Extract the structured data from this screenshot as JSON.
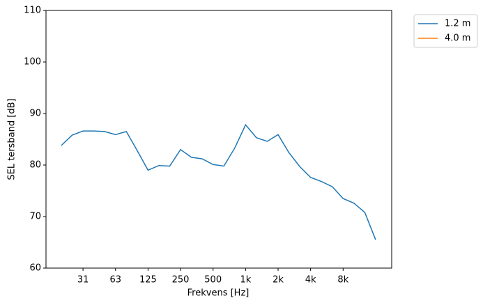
{
  "chart_data": {
    "type": "line",
    "xlabel": "Frekvens [Hz]",
    "ylabel": "SEL tersband [dB]",
    "categories": [
      null,
      null,
      "31",
      null,
      null,
      "63",
      null,
      null,
      "125",
      null,
      null,
      "250",
      null,
      null,
      "500",
      null,
      null,
      "1k",
      null,
      null,
      "2k",
      null,
      null,
      "4k",
      null,
      null,
      "8k",
      null,
      null,
      null
    ],
    "series": [
      {
        "name": "1.2 m",
        "color": "#1f77b4",
        "values": [
          83.8,
          85.8,
          86.6,
          86.6,
          86.5,
          85.9,
          86.5,
          82.8,
          79.0,
          79.9,
          79.8,
          83.0,
          81.5,
          81.2,
          80.1,
          79.8,
          83.3,
          87.8,
          85.3,
          84.6,
          85.9,
          82.4,
          79.7,
          77.6,
          76.8,
          75.8,
          73.5,
          72.6,
          70.8,
          65.5
        ]
      },
      {
        "name": "4.0 m",
        "color": "#ff7f0e",
        "values": [
          null,
          null,
          null,
          null,
          null,
          null,
          null,
          null,
          null,
          null,
          null,
          null,
          null,
          null,
          null,
          null,
          null,
          null,
          null,
          null,
          null,
          null,
          null,
          null,
          null,
          null,
          null,
          null,
          null,
          null
        ]
      }
    ],
    "ylim": [
      60,
      110
    ],
    "yticks": [
      60,
      70,
      80,
      90,
      100,
      110
    ],
    "legend": "outside upper right"
  }
}
